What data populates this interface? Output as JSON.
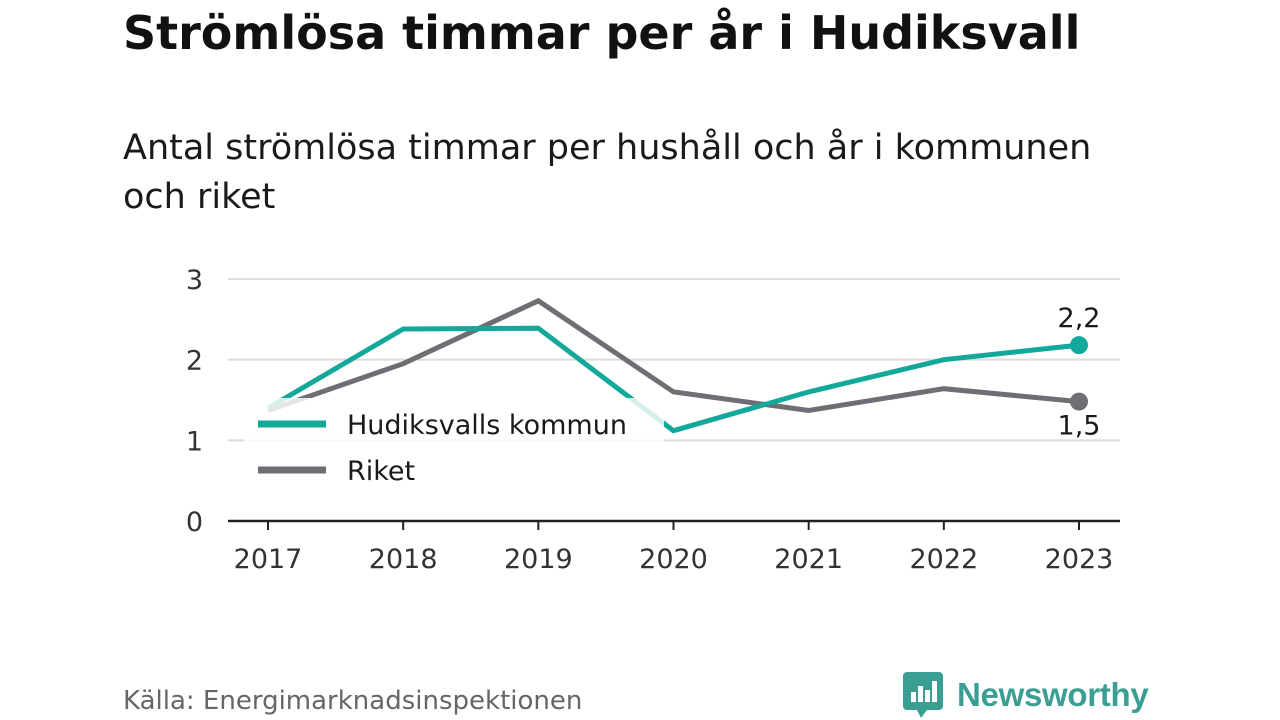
{
  "title": "Strömlösa timmar per år i Hudiksvall",
  "subtitle": "Antal strömlösa timmar per hushåll och år i kommunen och riket",
  "source": "Källa: Energimarknadsinspektionen",
  "brand": "Newsworthy",
  "colors": {
    "hudiksvall": "#12a89a",
    "riket": "#6e6e74",
    "brand": "#3a9f92"
  },
  "chart_data": {
    "type": "line",
    "x": [
      "2017",
      "2018",
      "2019",
      "2020",
      "2021",
      "2022",
      "2023"
    ],
    "ylim": [
      0,
      3
    ],
    "yticks": [
      "0",
      "1",
      "2",
      "3"
    ],
    "grid": true,
    "legend_placement": "left, inside plot",
    "series": [
      {
        "name": "Hudiksvalls kommun",
        "values": [
          1.4,
          2.38,
          2.39,
          1.12,
          1.6,
          2.0,
          2.18
        ],
        "end_label": "2,2"
      },
      {
        "name": "Riket",
        "values": [
          1.37,
          1.95,
          2.73,
          1.6,
          1.37,
          1.64,
          1.48
        ],
        "end_label": "1,5"
      }
    ]
  }
}
